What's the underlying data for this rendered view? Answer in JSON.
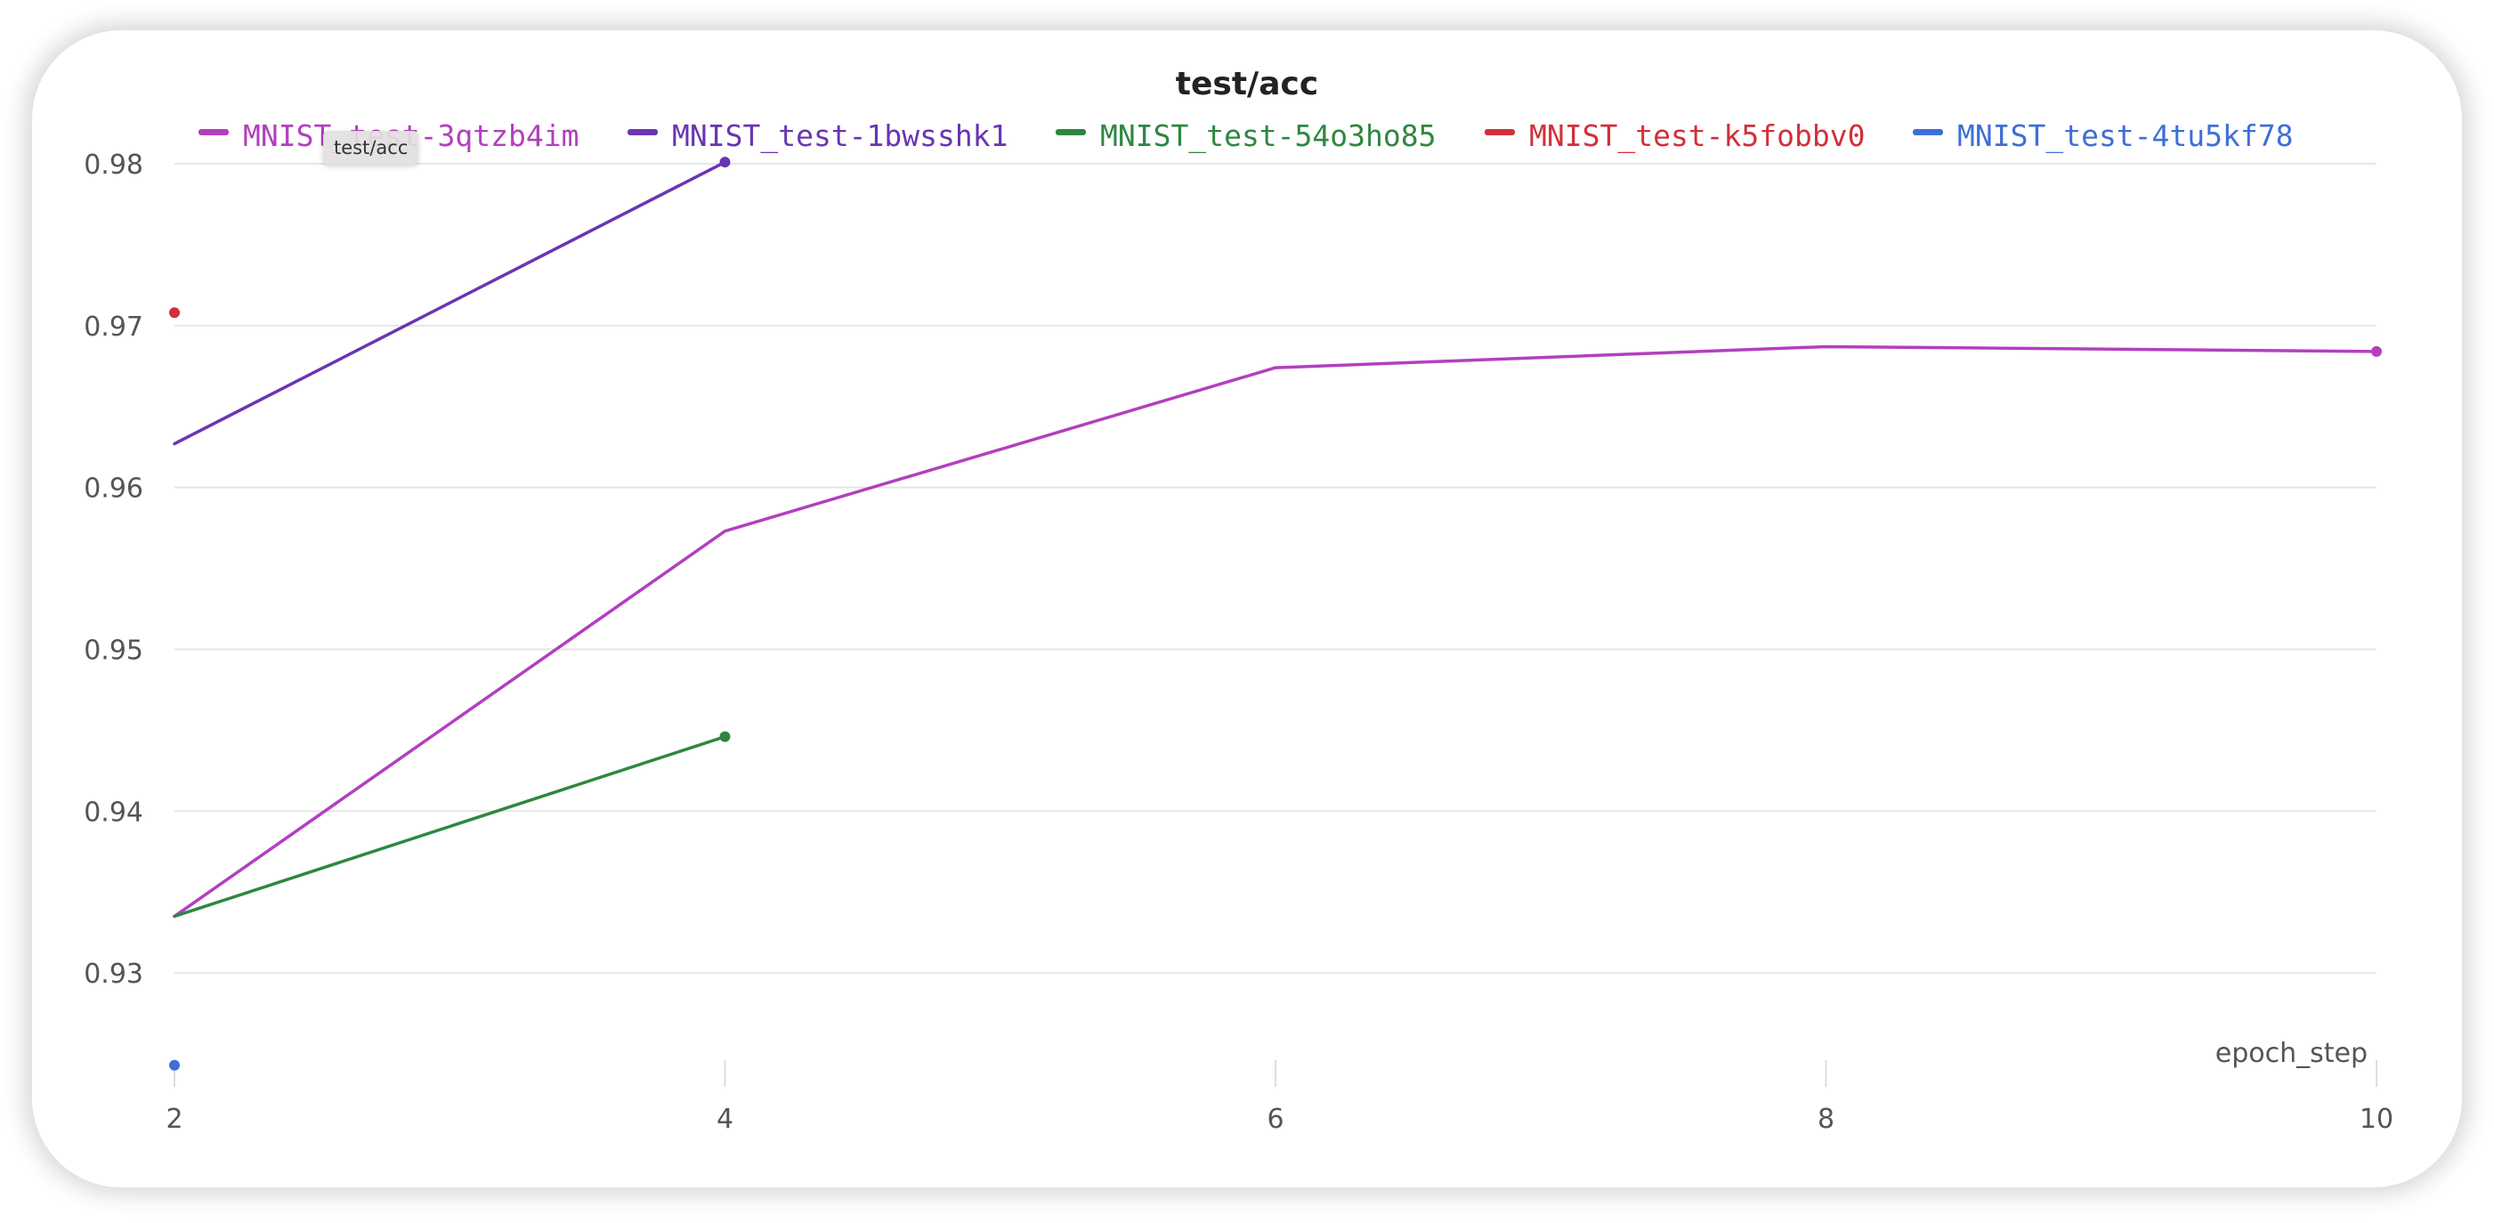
{
  "chart_data": {
    "type": "line",
    "title": "test/acc",
    "xlabel": "epoch_step",
    "ylabel": "",
    "xlim": [
      2,
      10
    ],
    "ylim": [
      0.925,
      0.98
    ],
    "x_ticks": [
      2,
      4,
      6,
      8,
      10
    ],
    "y_ticks": [
      0.93,
      0.94,
      0.95,
      0.96,
      0.97,
      0.98
    ],
    "grid": "horizontal",
    "legend_position": "top",
    "series": [
      {
        "name": "MNIST_test-3qtzb4im",
        "color": "#b23fbf",
        "x": [
          2,
          4,
          6,
          8,
          10
        ],
        "y": [
          0.9335,
          0.9573,
          0.9674,
          0.9687,
          0.9684
        ]
      },
      {
        "name": "MNIST_test-1bwsshk1",
        "color": "#6a35b2",
        "x": [
          2,
          4
        ],
        "y": [
          0.9627,
          0.9801
        ]
      },
      {
        "name": "MNIST_test-54o3ho85",
        "color": "#2e8740",
        "x": [
          2,
          4
        ],
        "y": [
          0.9335,
          0.9446
        ]
      },
      {
        "name": "MNIST_test-k5fobbv0",
        "color": "#d1303a",
        "x": [
          2
        ],
        "y": [
          0.9708
        ]
      },
      {
        "name": "MNIST_test-4tu5kf78",
        "color": "#3e6fd6",
        "x": [
          2
        ],
        "y": [
          0.9243
        ]
      }
    ]
  },
  "tooltip": {
    "text": "test/acc"
  }
}
